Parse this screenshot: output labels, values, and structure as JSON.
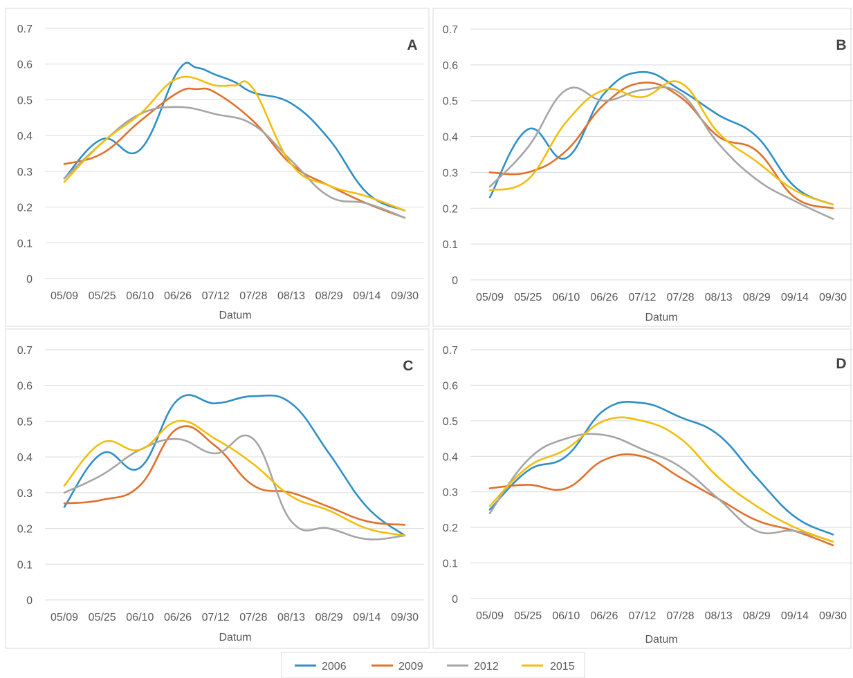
{
  "chart_data": {
    "type": "line",
    "legend_position": "bottom",
    "grid": true,
    "x_ticks": [
      "05/09",
      "05/25",
      "06/10",
      "06/26",
      "07/12",
      "07/28",
      "08/13",
      "08/29",
      "09/14",
      "09/30"
    ],
    "y_ticks": [
      "0",
      "0.1",
      "0.2",
      "0.3",
      "0.4",
      "0.5",
      "0.6",
      "0.7"
    ],
    "ylim": [
      0,
      0.7
    ],
    "colors": {
      "2006": "#2e8fc6",
      "2009": "#e0702b",
      "2012": "#a5a5a5",
      "2015": "#f2bd0c"
    },
    "legend": [
      "2006",
      "2009",
      "2012",
      "2015"
    ],
    "panels": [
      {
        "label": "A",
        "xlabel": "Datum",
        "series": [
          {
            "name": "2006",
            "x": [
              0,
              1,
              2,
              3,
              3.5,
              4,
              4.5,
              5,
              6,
              7,
              8,
              9
            ],
            "y": [
              0.28,
              0.39,
              0.36,
              0.58,
              0.59,
              0.57,
              0.55,
              0.52,
              0.49,
              0.39,
              0.24,
              0.19
            ]
          },
          {
            "name": "2009",
            "x": [
              0,
              1,
              2,
              3,
              3.5,
              4,
              5,
              6,
              7,
              8,
              9
            ],
            "y": [
              0.32,
              0.35,
              0.44,
              0.52,
              0.53,
              0.52,
              0.44,
              0.32,
              0.26,
              0.21,
              0.17
            ]
          },
          {
            "name": "2012",
            "x": [
              0,
              1,
              2,
              3,
              4,
              5,
              6,
              7,
              8,
              9
            ],
            "y": [
              0.28,
              0.38,
              0.46,
              0.48,
              0.46,
              0.43,
              0.33,
              0.23,
              0.21,
              0.17
            ]
          },
          {
            "name": "2015",
            "x": [
              0,
              1,
              2,
              3,
              4,
              4.5,
              5,
              6,
              7,
              8,
              9
            ],
            "y": [
              0.27,
              0.38,
              0.46,
              0.56,
              0.54,
              0.54,
              0.53,
              0.32,
              0.26,
              0.23,
              0.19
            ]
          }
        ]
      },
      {
        "label": "B",
        "xlabel": "Datum",
        "series": [
          {
            "name": "2006",
            "x": [
              0,
              1,
              2,
              3,
              4,
              5,
              6,
              7,
              8,
              9
            ],
            "y": [
              0.23,
              0.42,
              0.34,
              0.52,
              0.58,
              0.53,
              0.46,
              0.4,
              0.26,
              0.21
            ]
          },
          {
            "name": "2009",
            "x": [
              0,
              1,
              2,
              3,
              4,
              5,
              6,
              7,
              8,
              9
            ],
            "y": [
              0.3,
              0.3,
              0.36,
              0.49,
              0.55,
              0.51,
              0.4,
              0.36,
              0.23,
              0.2
            ]
          },
          {
            "name": "2012",
            "x": [
              0,
              1,
              2,
              3,
              4,
              5,
              6,
              7,
              8,
              9
            ],
            "y": [
              0.26,
              0.37,
              0.53,
              0.5,
              0.53,
              0.52,
              0.38,
              0.28,
              0.22,
              0.17
            ]
          },
          {
            "name": "2015",
            "x": [
              0,
              1,
              2,
              3,
              4,
              5,
              6,
              7,
              8,
              9
            ],
            "y": [
              0.25,
              0.28,
              0.44,
              0.53,
              0.51,
              0.55,
              0.41,
              0.33,
              0.25,
              0.21
            ]
          }
        ]
      },
      {
        "label": "C",
        "xlabel": "Datum",
        "series": [
          {
            "name": "2006",
            "x": [
              0,
              1,
              2,
              3,
              4,
              5,
              6,
              7,
              8,
              9
            ],
            "y": [
              0.26,
              0.41,
              0.37,
              0.56,
              0.55,
              0.57,
              0.55,
              0.41,
              0.26,
              0.18
            ]
          },
          {
            "name": "2009",
            "x": [
              0,
              1,
              2,
              3,
              4,
              5,
              6,
              7,
              8,
              9
            ],
            "y": [
              0.27,
              0.28,
              0.32,
              0.48,
              0.43,
              0.32,
              0.3,
              0.26,
              0.22,
              0.21
            ]
          },
          {
            "name": "2012",
            "x": [
              0,
              1,
              2,
              3,
              4,
              5,
              6,
              7,
              8,
              9
            ],
            "y": [
              0.3,
              0.35,
              0.42,
              0.45,
              0.41,
              0.45,
              0.22,
              0.2,
              0.17,
              0.18
            ]
          },
          {
            "name": "2015",
            "x": [
              0,
              1,
              2,
              3,
              4,
              5,
              6,
              7,
              8,
              9
            ],
            "y": [
              0.32,
              0.44,
              0.42,
              0.5,
              0.45,
              0.38,
              0.29,
              0.25,
              0.2,
              0.18
            ]
          }
        ]
      },
      {
        "label": "D",
        "xlabel": "Datum",
        "series": [
          {
            "name": "2006",
            "x": [
              0,
              1,
              2,
              3,
              4,
              5,
              6,
              7,
              8,
              9
            ],
            "y": [
              0.25,
              0.36,
              0.4,
              0.53,
              0.55,
              0.51,
              0.46,
              0.34,
              0.23,
              0.18
            ]
          },
          {
            "name": "2009",
            "x": [
              0,
              1,
              2,
              3,
              4,
              5,
              6,
              7,
              8,
              9
            ],
            "y": [
              0.31,
              0.32,
              0.31,
              0.39,
              0.4,
              0.34,
              0.28,
              0.22,
              0.19,
              0.15
            ]
          },
          {
            "name": "2012",
            "x": [
              0,
              1,
              2,
              3,
              4,
              5,
              6,
              7,
              8,
              9
            ],
            "y": [
              0.24,
              0.39,
              0.45,
              0.46,
              0.42,
              0.37,
              0.28,
              0.19,
              0.19,
              0.16
            ]
          },
          {
            "name": "2015",
            "x": [
              0,
              1,
              2,
              3,
              4,
              5,
              6,
              7,
              8,
              9
            ],
            "y": [
              0.26,
              0.37,
              0.42,
              0.5,
              0.5,
              0.45,
              0.34,
              0.26,
              0.2,
              0.16
            ]
          }
        ]
      }
    ]
  }
}
